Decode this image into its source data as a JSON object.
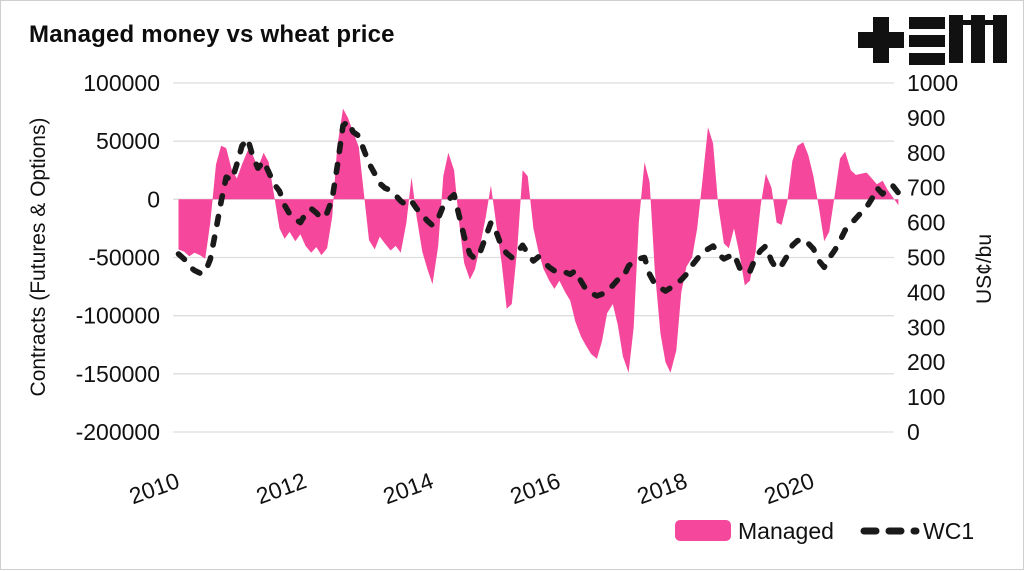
{
  "header": {
    "title": "Managed money vs wheat price",
    "logo": "tem-logo"
  },
  "chart_data": {
    "type": "area+line",
    "title": "Managed money vs wheat price",
    "grid": "horizontal",
    "legend_position": "bottom-right",
    "x_axis": {
      "ticks": [
        2010,
        2012,
        2014,
        2016,
        2018,
        2020
      ],
      "range": [
        2010,
        2021.31
      ],
      "tick_rotation_deg": -20
    },
    "left_axis": {
      "label": "Contracts (Futures & Options)",
      "ticks": [
        100000,
        50000,
        0,
        -50000,
        -100000,
        -150000,
        -200000
      ],
      "range": [
        -200000,
        100000
      ]
    },
    "right_axis": {
      "label": "US¢/bu",
      "ticks": [
        1000,
        900,
        800,
        700,
        600,
        500,
        400,
        300,
        200,
        100,
        0
      ],
      "range": [
        0,
        1000
      ]
    },
    "series": [
      {
        "name": "Managed",
        "type": "area",
        "axis": "left",
        "color": "#f5479b",
        "points": [
          [
            2010.04,
            -43000
          ],
          [
            2010.13,
            -45000
          ],
          [
            2010.21,
            -49000
          ],
          [
            2010.29,
            -46000
          ],
          [
            2010.38,
            -48000
          ],
          [
            2010.46,
            -51000
          ],
          [
            2010.54,
            -20000
          ],
          [
            2010.63,
            30000
          ],
          [
            2010.71,
            46000
          ],
          [
            2010.79,
            44000
          ],
          [
            2010.88,
            25000
          ],
          [
            2010.96,
            18000
          ],
          [
            2011.04,
            30000
          ],
          [
            2011.13,
            42000
          ],
          [
            2011.21,
            38000
          ],
          [
            2011.29,
            27000
          ],
          [
            2011.38,
            40000
          ],
          [
            2011.46,
            32000
          ],
          [
            2011.54,
            5000
          ],
          [
            2011.63,
            -25000
          ],
          [
            2011.71,
            -34000
          ],
          [
            2011.79,
            -28000
          ],
          [
            2011.88,
            -36000
          ],
          [
            2011.96,
            -30000
          ],
          [
            2012.04,
            -40000
          ],
          [
            2012.13,
            -46000
          ],
          [
            2012.21,
            -41000
          ],
          [
            2012.29,
            -48000
          ],
          [
            2012.38,
            -42000
          ],
          [
            2012.46,
            -15000
          ],
          [
            2012.54,
            45000
          ],
          [
            2012.63,
            78000
          ],
          [
            2012.71,
            70000
          ],
          [
            2012.79,
            58000
          ],
          [
            2012.88,
            45000
          ],
          [
            2012.96,
            5000
          ],
          [
            2013.04,
            -35000
          ],
          [
            2013.13,
            -43000
          ],
          [
            2013.21,
            -32000
          ],
          [
            2013.29,
            -38000
          ],
          [
            2013.38,
            -44000
          ],
          [
            2013.46,
            -40000
          ],
          [
            2013.54,
            -46000
          ],
          [
            2013.63,
            -20000
          ],
          [
            2013.71,
            19000
          ],
          [
            2013.79,
            -15000
          ],
          [
            2013.88,
            -45000
          ],
          [
            2013.96,
            -60000
          ],
          [
            2014.04,
            -73000
          ],
          [
            2014.13,
            -40000
          ],
          [
            2014.21,
            20000
          ],
          [
            2014.29,
            40000
          ],
          [
            2014.38,
            25000
          ],
          [
            2014.46,
            -20000
          ],
          [
            2014.54,
            -55000
          ],
          [
            2014.63,
            -69000
          ],
          [
            2014.71,
            -60000
          ],
          [
            2014.79,
            -40000
          ],
          [
            2014.88,
            -15000
          ],
          [
            2014.96,
            12000
          ],
          [
            2015.04,
            -20000
          ],
          [
            2015.13,
            -55000
          ],
          [
            2015.21,
            -94000
          ],
          [
            2015.29,
            -90000
          ],
          [
            2015.38,
            -40000
          ],
          [
            2015.46,
            25000
          ],
          [
            2015.54,
            20000
          ],
          [
            2015.63,
            -25000
          ],
          [
            2015.71,
            -45000
          ],
          [
            2015.79,
            -60000
          ],
          [
            2015.88,
            -70000
          ],
          [
            2015.96,
            -77000
          ],
          [
            2016.04,
            -70000
          ],
          [
            2016.13,
            -80000
          ],
          [
            2016.21,
            -87000
          ],
          [
            2016.29,
            -105000
          ],
          [
            2016.38,
            -118000
          ],
          [
            2016.46,
            -126000
          ],
          [
            2016.54,
            -133000
          ],
          [
            2016.63,
            -137000
          ],
          [
            2016.71,
            -122000
          ],
          [
            2016.79,
            -98000
          ],
          [
            2016.88,
            -90000
          ],
          [
            2016.96,
            -108000
          ],
          [
            2017.04,
            -135000
          ],
          [
            2017.13,
            -149000
          ],
          [
            2017.21,
            -110000
          ],
          [
            2017.29,
            -20000
          ],
          [
            2017.38,
            32000
          ],
          [
            2017.46,
            15000
          ],
          [
            2017.54,
            -60000
          ],
          [
            2017.63,
            -115000
          ],
          [
            2017.71,
            -140000
          ],
          [
            2017.79,
            -149000
          ],
          [
            2017.88,
            -130000
          ],
          [
            2017.96,
            -80000
          ],
          [
            2018.04,
            -58000
          ],
          [
            2018.13,
            -50000
          ],
          [
            2018.21,
            -25000
          ],
          [
            2018.29,
            15000
          ],
          [
            2018.38,
            62000
          ],
          [
            2018.46,
            48000
          ],
          [
            2018.54,
            -5000
          ],
          [
            2018.63,
            -38000
          ],
          [
            2018.71,
            -42000
          ],
          [
            2018.79,
            -25000
          ],
          [
            2018.88,
            -48000
          ],
          [
            2018.96,
            -74000
          ],
          [
            2019.04,
            -70000
          ],
          [
            2019.13,
            -45000
          ],
          [
            2019.21,
            -5000
          ],
          [
            2019.29,
            22000
          ],
          [
            2019.38,
            10000
          ],
          [
            2019.46,
            -20000
          ],
          [
            2019.54,
            -22000
          ],
          [
            2019.63,
            -2000
          ],
          [
            2019.71,
            33000
          ],
          [
            2019.79,
            46000
          ],
          [
            2019.88,
            49000
          ],
          [
            2019.96,
            38000
          ],
          [
            2020.04,
            20000
          ],
          [
            2020.13,
            -8000
          ],
          [
            2020.21,
            -36000
          ],
          [
            2020.29,
            -28000
          ],
          [
            2020.38,
            5000
          ],
          [
            2020.46,
            35000
          ],
          [
            2020.54,
            41000
          ],
          [
            2020.63,
            25000
          ],
          [
            2020.71,
            21000
          ],
          [
            2020.79,
            22000
          ],
          [
            2020.88,
            23000
          ],
          [
            2020.96,
            18000
          ],
          [
            2021.04,
            13000
          ],
          [
            2021.13,
            16000
          ],
          [
            2021.21,
            8000
          ],
          [
            2021.29,
            2000
          ],
          [
            2021.38,
            -5000
          ]
        ]
      },
      {
        "name": "WC1",
        "type": "dashed-line",
        "axis": "right",
        "color": "#1a1a1a",
        "points": [
          [
            2010.04,
            510
          ],
          [
            2010.13,
            495
          ],
          [
            2010.21,
            475
          ],
          [
            2010.29,
            463
          ],
          [
            2010.38,
            455
          ],
          [
            2010.46,
            458
          ],
          [
            2010.54,
            495
          ],
          [
            2010.63,
            580
          ],
          [
            2010.71,
            660
          ],
          [
            2010.79,
            730
          ],
          [
            2010.88,
            722
          ],
          [
            2010.96,
            768
          ],
          [
            2011.04,
            820
          ],
          [
            2011.13,
            840
          ],
          [
            2011.21,
            790
          ],
          [
            2011.29,
            756
          ],
          [
            2011.38,
            776
          ],
          [
            2011.46,
            745
          ],
          [
            2011.54,
            712
          ],
          [
            2011.63,
            690
          ],
          [
            2011.71,
            650
          ],
          [
            2011.79,
            625
          ],
          [
            2011.88,
            610
          ],
          [
            2011.96,
            600
          ],
          [
            2012.04,
            625
          ],
          [
            2012.13,
            640
          ],
          [
            2012.21,
            628
          ],
          [
            2012.29,
            612
          ],
          [
            2012.38,
            628
          ],
          [
            2012.46,
            668
          ],
          [
            2012.54,
            760
          ],
          [
            2012.63,
            878
          ],
          [
            2012.71,
            890
          ],
          [
            2012.79,
            860
          ],
          [
            2012.88,
            848
          ],
          [
            2012.96,
            808
          ],
          [
            2013.04,
            770
          ],
          [
            2013.13,
            740
          ],
          [
            2013.21,
            712
          ],
          [
            2013.29,
            699
          ],
          [
            2013.38,
            692
          ],
          [
            2013.46,
            678
          ],
          [
            2013.54,
            662
          ],
          [
            2013.63,
            650
          ],
          [
            2013.71,
            662
          ],
          [
            2013.79,
            640
          ],
          [
            2013.88,
            622
          ],
          [
            2013.96,
            605
          ],
          [
            2014.04,
            592
          ],
          [
            2014.13,
            612
          ],
          [
            2014.21,
            648
          ],
          [
            2014.29,
            665
          ],
          [
            2014.38,
            680
          ],
          [
            2014.46,
            620
          ],
          [
            2014.54,
            560
          ],
          [
            2014.63,
            510
          ],
          [
            2014.71,
            496
          ],
          [
            2014.79,
            515
          ],
          [
            2014.88,
            560
          ],
          [
            2014.96,
            600
          ],
          [
            2015.04,
            575
          ],
          [
            2015.13,
            530
          ],
          [
            2015.21,
            512
          ],
          [
            2015.29,
            500
          ],
          [
            2015.38,
            515
          ],
          [
            2015.46,
            535
          ],
          [
            2015.54,
            512
          ],
          [
            2015.63,
            490
          ],
          [
            2015.71,
            502
          ],
          [
            2015.79,
            488
          ],
          [
            2015.88,
            472
          ],
          [
            2015.96,
            462
          ],
          [
            2016.04,
            465
          ],
          [
            2016.13,
            458
          ],
          [
            2016.21,
            452
          ],
          [
            2016.29,
            462
          ],
          [
            2016.38,
            432
          ],
          [
            2016.46,
            408
          ],
          [
            2016.54,
            398
          ],
          [
            2016.63,
            390
          ],
          [
            2016.71,
            395
          ],
          [
            2016.79,
            404
          ],
          [
            2016.88,
            420
          ],
          [
            2016.96,
            436
          ],
          [
            2017.04,
            441
          ],
          [
            2017.13,
            476
          ],
          [
            2017.21,
            488
          ],
          [
            2017.29,
            496
          ],
          [
            2017.38,
            500
          ],
          [
            2017.46,
            452
          ],
          [
            2017.54,
            425
          ],
          [
            2017.63,
            413
          ],
          [
            2017.71,
            404
          ],
          [
            2017.79,
            413
          ],
          [
            2017.88,
            425
          ],
          [
            2017.96,
            436
          ],
          [
            2018.04,
            452
          ],
          [
            2018.13,
            478
          ],
          [
            2018.21,
            496
          ],
          [
            2018.29,
            515
          ],
          [
            2018.38,
            524
          ],
          [
            2018.46,
            533
          ],
          [
            2018.54,
            510
          ],
          [
            2018.63,
            496
          ],
          [
            2018.71,
            503
          ],
          [
            2018.79,
            510
          ],
          [
            2018.88,
            470
          ],
          [
            2018.96,
            455
          ],
          [
            2019.04,
            460
          ],
          [
            2019.13,
            500
          ],
          [
            2019.21,
            520
          ],
          [
            2019.29,
            533
          ],
          [
            2019.38,
            490
          ],
          [
            2019.46,
            467
          ],
          [
            2019.54,
            478
          ],
          [
            2019.63,
            505
          ],
          [
            2019.71,
            535
          ],
          [
            2019.79,
            548
          ],
          [
            2019.88,
            553
          ],
          [
            2019.96,
            540
          ],
          [
            2020.04,
            525
          ],
          [
            2020.13,
            490
          ],
          [
            2020.21,
            472
          ],
          [
            2020.29,
            498
          ],
          [
            2020.38,
            522
          ],
          [
            2020.46,
            548
          ],
          [
            2020.54,
            578
          ],
          [
            2020.63,
            596
          ],
          [
            2020.71,
            612
          ],
          [
            2020.79,
            628
          ],
          [
            2020.88,
            645
          ],
          [
            2020.96,
            668
          ],
          [
            2021.04,
            700
          ],
          [
            2021.13,
            682
          ],
          [
            2021.21,
            700
          ],
          [
            2021.29,
            706
          ],
          [
            2021.38,
            685
          ]
        ]
      }
    ]
  }
}
